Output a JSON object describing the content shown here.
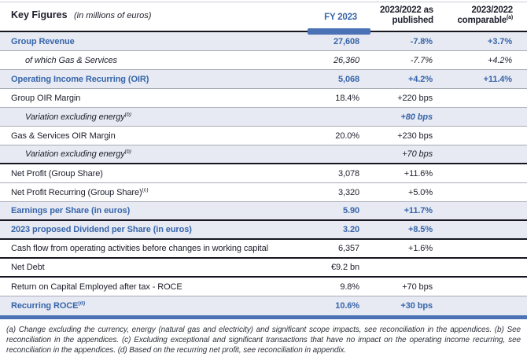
{
  "title": {
    "main": "Key Figures",
    "suffix": "(in millions of euros)"
  },
  "columns": [
    {
      "label": "FY 2023",
      "sup": ""
    },
    {
      "label": "2023/2022 as published",
      "sup": ""
    },
    {
      "label": "2023/2022 comparable",
      "sup": "(a)"
    }
  ],
  "rows": [
    {
      "label": "Group Revenue",
      "sup": "",
      "indent": false,
      "shaded": true,
      "cls": "blue",
      "values": [
        "27,608",
        "-7.8%",
        "+3.7%"
      ],
      "sep": "thin"
    },
    {
      "label": "of which Gas & Services",
      "sup": "",
      "indent": true,
      "shaded": false,
      "cls": "italic",
      "values": [
        "26,360",
        "-7.7%",
        "+4.2%"
      ],
      "sep": "thin"
    },
    {
      "label": "Operating Income Recurring (OIR)",
      "sup": "",
      "indent": false,
      "shaded": true,
      "cls": "blue",
      "values": [
        "5,068",
        "+4.2%",
        "+11.4%"
      ],
      "sep": "thin"
    },
    {
      "label": "Group OIR Margin",
      "sup": "",
      "indent": false,
      "shaded": false,
      "cls": "",
      "values": [
        "18.4%",
        "+220 bps",
        ""
      ],
      "sep": "thin"
    },
    {
      "label": "Variation excluding energy",
      "sup": "(b)",
      "indent": true,
      "shaded": true,
      "cls": "italic",
      "vcls": "blue italic",
      "values": [
        "",
        "+80 bps",
        ""
      ],
      "sep": "thin"
    },
    {
      "label": "Gas & Services OIR Margin",
      "sup": "",
      "indent": false,
      "shaded": false,
      "cls": "",
      "values": [
        "20.0%",
        "+230 bps",
        ""
      ],
      "sep": "thin"
    },
    {
      "label": "Variation excluding energy",
      "sup": "(b)",
      "indent": true,
      "shaded": true,
      "cls": "italic",
      "values": [
        "",
        "+70 bps",
        ""
      ],
      "sep": "thick"
    },
    {
      "label": "Net Profit (Group Share)",
      "sup": "",
      "indent": false,
      "shaded": false,
      "cls": "",
      "values": [
        "3,078",
        "+11.6%",
        ""
      ],
      "sep": "thin"
    },
    {
      "label": "Net Profit Recurring (Group Share)",
      "sup": "(c)",
      "indent": false,
      "shaded": false,
      "cls": "",
      "values": [
        "3,320",
        "+5.0%",
        ""
      ],
      "sep": "thin"
    },
    {
      "label": "Earnings per Share (in euros)",
      "sup": "",
      "indent": false,
      "shaded": true,
      "cls": "blue",
      "values": [
        "5.90",
        "+11.7%",
        ""
      ],
      "sep": "thick"
    },
    {
      "label": "2023 proposed Dividend per Share (in euros)",
      "sup": "",
      "indent": false,
      "shaded": true,
      "cls": "blue",
      "values": [
        "3.20",
        "+8.5%",
        ""
      ],
      "sep": "thick"
    },
    {
      "label": "Cash flow from operating activities before changes in working capital",
      "sup": "",
      "indent": false,
      "shaded": false,
      "cls": "",
      "values": [
        "6,357",
        "+1.6%",
        ""
      ],
      "sep": "thick"
    },
    {
      "label": "Net Debt",
      "sup": "",
      "indent": false,
      "shaded": false,
      "cls": "",
      "values": [
        "€9.2 bn",
        "",
        ""
      ],
      "sep": "thick"
    },
    {
      "label": "Return on Capital Employed after tax - ROCE",
      "sup": "",
      "indent": false,
      "shaded": false,
      "cls": "",
      "values": [
        "9.8%",
        "+70 bps",
        ""
      ],
      "sep": "thin"
    },
    {
      "label": "Recurring ROCE",
      "sup": "(d)",
      "indent": false,
      "shaded": true,
      "cls": "blue",
      "values": [
        "10.6%",
        "+30 bps",
        ""
      ],
      "sep": "none"
    }
  ],
  "footnote": "(a) Change excluding the currency, energy (natural gas and electricity) and significant scope impacts, see reconciliation in the appendices. (b) See reconciliation in the appendices. (c) Excluding exceptional and significant transactions that have no impact on the operating income recurring, see reconciliation in the appendices. (d) Based on the recurring net profit, see reconciliation in appendix.",
  "colors": {
    "accent_blue": "#3765aa",
    "bar_blue": "#4a72b4",
    "shaded_row": "#e7eaf3",
    "dark_text": "#1d1f2b"
  }
}
